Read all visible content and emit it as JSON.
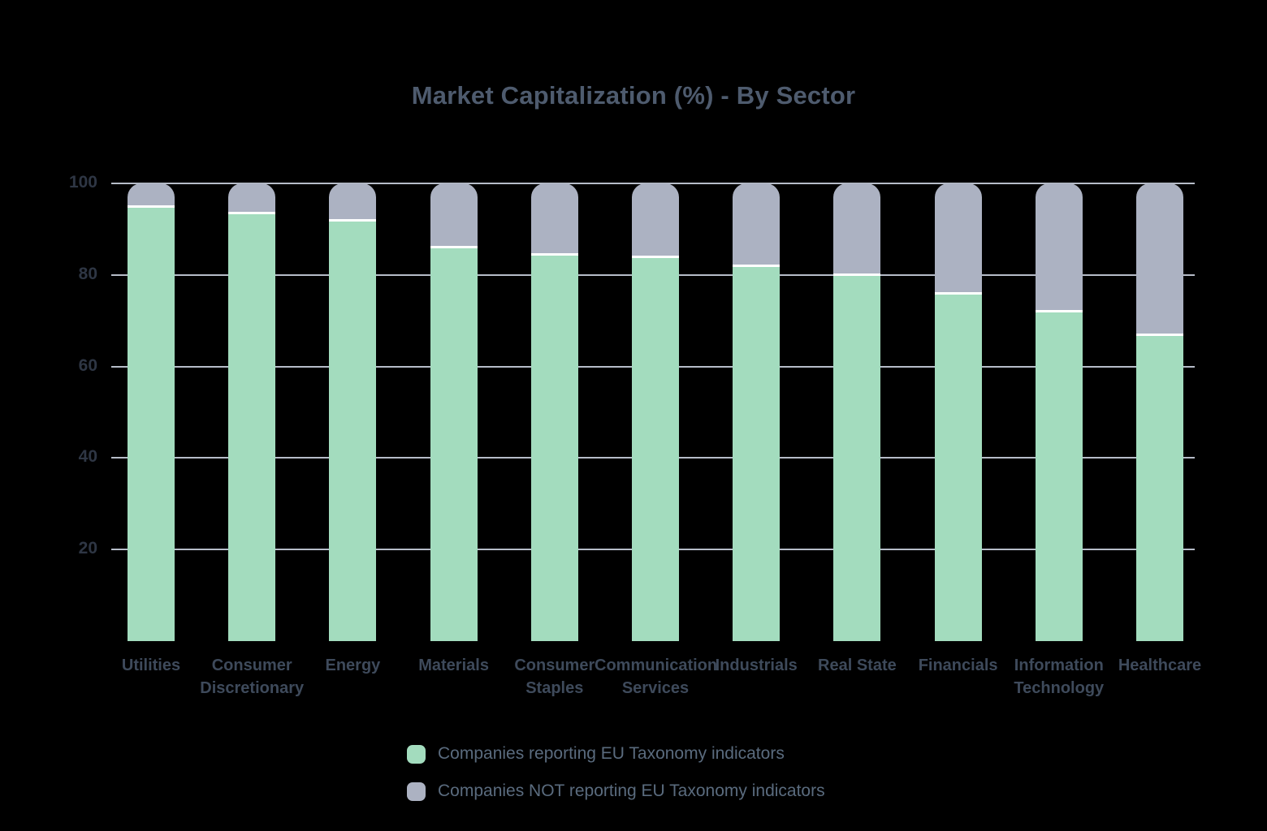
{
  "title": "Market Capitalization (%) - By Sector",
  "colors": {
    "background": "#000000",
    "reporting": "#A3DCBE",
    "not_reporting": "#ACB2C2",
    "separator": "#FFFFFF",
    "gridline": "#B6BCC8",
    "title_text": "#4E5B6E",
    "tick_text": "#2E3644",
    "category_text": "#3E4A5B",
    "legend_text": "#5A6B7E"
  },
  "legend": {
    "items": [
      {
        "label": "Companies reporting EU Taxonomy indicators",
        "color": "#A3DCBE"
      },
      {
        "label": "Companies NOT reporting EU Taxonomy indicators",
        "color": "#ACB2C2"
      }
    ]
  },
  "chart_data": {
    "type": "bar",
    "stacked": true,
    "title": "Market Capitalization (%) - By Sector",
    "categories": [
      "Utilities",
      "Consumer Discretionary",
      "Energy",
      "Materials",
      "Consumer Staples",
      "Communication Services",
      "Industrials",
      "Real State",
      "Financials",
      "Information Technology",
      "Healthcare"
    ],
    "series": [
      {
        "name": "Companies reporting EU Taxonomy indicators",
        "color": "#A3DCBE",
        "values": [
          95,
          93.5,
          92,
          86,
          84.5,
          84,
          82,
          80,
          76,
          72,
          67
        ]
      },
      {
        "name": "Companies NOT reporting EU Taxonomy indicators",
        "color": "#ACB2C2",
        "values": [
          5,
          6.5,
          8,
          14,
          15.5,
          16,
          18,
          20,
          24,
          28,
          33
        ]
      }
    ],
    "xlabel": "",
    "ylabel": "",
    "ylim": [
      0,
      100
    ],
    "yticks": [
      20,
      40,
      60,
      80,
      100
    ],
    "grid": true,
    "legend_position": "bottom"
  }
}
